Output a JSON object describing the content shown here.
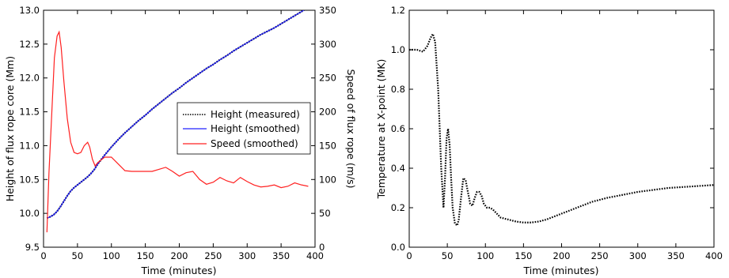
{
  "chart_data": [
    {
      "type": "line",
      "xlabel": "Time (minutes)",
      "ylabel": "Height of flux rope core (Mm)",
      "y2label": "Speed of flux rope (m/s)",
      "xlim": [
        0,
        400
      ],
      "ylim": [
        9.5,
        13.0
      ],
      "y2lim": [
        0,
        350
      ],
      "xticks": [
        "0",
        "50",
        "100",
        "150",
        "200",
        "250",
        "300",
        "350",
        "400"
      ],
      "yticks": [
        "9.5",
        "10.0",
        "10.5",
        "11.0",
        "11.5",
        "12.0",
        "12.5",
        "13.0"
      ],
      "y2ticks": [
        "0",
        "50",
        "100",
        "150",
        "200",
        "250",
        "300",
        "350"
      ],
      "grid": false,
      "legend_position": "center-right",
      "series": [
        {
          "name": "Height (measured)",
          "axis": "left",
          "color": "#000000",
          "style": "dotted",
          "x": [
            5,
            10,
            15,
            20,
            25,
            30,
            35,
            40,
            45,
            50,
            55,
            60,
            65,
            70,
            75,
            80,
            90,
            100,
            110,
            120,
            130,
            140,
            150,
            160,
            170,
            180,
            190,
            200,
            210,
            220,
            230,
            240,
            250,
            260,
            270,
            280,
            290,
            300,
            310,
            320,
            330,
            340,
            350,
            360,
            370,
            380,
            390,
            395
          ],
          "y": [
            9.93,
            9.95,
            9.98,
            10.03,
            10.1,
            10.18,
            10.26,
            10.33,
            10.38,
            10.42,
            10.46,
            10.5,
            10.54,
            10.59,
            10.65,
            10.73,
            10.86,
            10.98,
            11.09,
            11.19,
            11.28,
            11.37,
            11.45,
            11.54,
            11.62,
            11.7,
            11.78,
            11.85,
            11.93,
            12.0,
            12.07,
            12.14,
            12.2,
            12.27,
            12.33,
            12.4,
            12.46,
            12.52,
            12.58,
            12.64,
            12.69,
            12.74,
            12.8,
            12.86,
            12.92,
            12.98,
            13.04,
            13.1
          ]
        },
        {
          "name": "Height (smoothed)",
          "axis": "left",
          "color": "#2020ff",
          "style": "solid",
          "x": [
            5,
            10,
            15,
            20,
            25,
            30,
            35,
            40,
            45,
            50,
            55,
            60,
            65,
            70,
            75,
            80,
            90,
            100,
            110,
            120,
            130,
            140,
            150,
            160,
            170,
            180,
            190,
            200,
            210,
            220,
            230,
            240,
            250,
            260,
            270,
            280,
            290,
            300,
            310,
            320,
            330,
            340,
            350,
            360,
            370,
            380,
            390,
            395
          ],
          "y": [
            9.93,
            9.95,
            9.98,
            10.03,
            10.1,
            10.18,
            10.26,
            10.33,
            10.38,
            10.42,
            10.46,
            10.5,
            10.54,
            10.59,
            10.65,
            10.73,
            10.86,
            10.98,
            11.09,
            11.19,
            11.28,
            11.37,
            11.45,
            11.54,
            11.62,
            11.7,
            11.78,
            11.85,
            11.93,
            12.0,
            12.07,
            12.14,
            12.2,
            12.27,
            12.33,
            12.4,
            12.46,
            12.52,
            12.58,
            12.64,
            12.69,
            12.74,
            12.8,
            12.86,
            12.92,
            12.98,
            13.04,
            13.1
          ]
        },
        {
          "name": "Speed (smoothed)",
          "axis": "right",
          "color": "#ff2020",
          "style": "solid",
          "x": [
            5,
            8,
            12,
            16,
            20,
            23,
            26,
            30,
            35,
            40,
            45,
            50,
            55,
            60,
            65,
            68,
            72,
            76,
            80,
            90,
            100,
            110,
            120,
            130,
            140,
            150,
            160,
            170,
            180,
            190,
            200,
            210,
            220,
            230,
            240,
            250,
            260,
            270,
            280,
            290,
            300,
            310,
            320,
            330,
            340,
            350,
            360,
            370,
            380,
            390
          ],
          "y": [
            22,
            110,
            195,
            280,
            312,
            318,
            295,
            245,
            190,
            155,
            140,
            138,
            140,
            150,
            155,
            148,
            130,
            120,
            125,
            133,
            133,
            123,
            113,
            112,
            112,
            112,
            112,
            115,
            118,
            112,
            105,
            110,
            112,
            100,
            93,
            96,
            103,
            98,
            95,
            103,
            97,
            92,
            89,
            90,
            92,
            88,
            90,
            95,
            92,
            90
          ]
        }
      ]
    },
    {
      "type": "line",
      "xlabel": "Time (minutes)",
      "ylabel": "Temperature at X-point (MK)",
      "xlim": [
        0,
        400
      ],
      "ylim": [
        0,
        1.2
      ],
      "xticks": [
        "0",
        "50",
        "100",
        "150",
        "200",
        "250",
        "300",
        "350",
        "400"
      ],
      "yticks": [
        "0.0",
        "0.2",
        "0.4",
        "0.6",
        "0.8",
        "1.0",
        "1.2"
      ],
      "grid": false,
      "series": [
        {
          "color": "#000000",
          "style": "dotted",
          "x": [
            0,
            10,
            18,
            24,
            28,
            31,
            34,
            38,
            42,
            45,
            47,
            49,
            51,
            53,
            55,
            57,
            60,
            63,
            65,
            68,
            71,
            74,
            77,
            80,
            83,
            86,
            89,
            92,
            95,
            98,
            102,
            106,
            110,
            115,
            120,
            130,
            140,
            150,
            160,
            170,
            180,
            190,
            200,
            220,
            240,
            260,
            280,
            300,
            320,
            340,
            360,
            380,
            400
          ],
          "y": [
            1.0,
            1.0,
            0.99,
            1.02,
            1.06,
            1.08,
            1.04,
            0.8,
            0.4,
            0.2,
            0.35,
            0.55,
            0.6,
            0.52,
            0.35,
            0.2,
            0.12,
            0.11,
            0.14,
            0.25,
            0.35,
            0.34,
            0.28,
            0.22,
            0.21,
            0.25,
            0.28,
            0.28,
            0.26,
            0.22,
            0.2,
            0.2,
            0.19,
            0.17,
            0.15,
            0.14,
            0.13,
            0.125,
            0.125,
            0.13,
            0.14,
            0.155,
            0.17,
            0.2,
            0.23,
            0.25,
            0.265,
            0.28,
            0.29,
            0.3,
            0.305,
            0.31,
            0.315
          ]
        }
      ]
    }
  ]
}
